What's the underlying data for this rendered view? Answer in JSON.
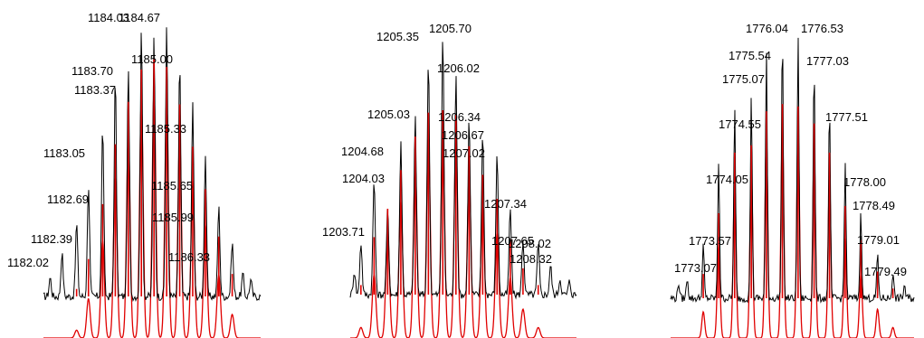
{
  "colors": {
    "experimental": "#000000",
    "simulated": "#e00000",
    "background": "#ffffff"
  },
  "chart_data": [
    {
      "type": "line",
      "x_unit": "m/z",
      "xlim": [
        1181.55,
        1187.05
      ],
      "peaks": [
        {
          "label": "1182.02",
          "x": 1182.02,
          "exp": 0.16,
          "sim": 0.0
        },
        {
          "label": "1182.39",
          "x": 1182.39,
          "exp": 0.27,
          "sim": 0.03
        },
        {
          "label": "1182.69",
          "x": 1182.69,
          "exp": 0.41,
          "sim": 0.15
        },
        {
          "label": "1183.05",
          "x": 1183.05,
          "exp": 0.63,
          "sim": 0.37
        },
        {
          "label": "1183.37",
          "x": 1183.37,
          "exp": 0.81,
          "sim": 0.61
        },
        {
          "label": "1183.70",
          "x": 1183.7,
          "exp": 0.84,
          "sim": 0.78
        },
        {
          "label": "1184.03",
          "x": 1184.03,
          "exp": 1.0,
          "sim": 0.91
        },
        {
          "label": "1184.67",
          "x": 1184.67,
          "exp": 1.0,
          "sim": 0.92
        },
        {
          "label": "1185.00",
          "x": 1185.0,
          "exp": 0.87,
          "sim": 0.77
        },
        {
          "label": "1185.33",
          "x": 1185.33,
          "exp": 0.71,
          "sim": 0.6
        },
        {
          "label": "1185.65",
          "x": 1185.65,
          "exp": 0.52,
          "sim": 0.43
        },
        {
          "label": "1185.99",
          "x": 1185.99,
          "exp": 0.33,
          "sim": 0.24
        },
        {
          "label": "1186.33",
          "x": 1186.33,
          "exp": 0.2,
          "sim": 0.09
        }
      ],
      "extra_peaks": [
        {
          "x": 1184.35,
          "exp": 0.96,
          "sim": 0.95
        },
        {
          "x": 1181.72,
          "exp": 0.07,
          "sim": 0.0
        },
        {
          "x": 1186.6,
          "exp": 0.08,
          "sim": 0.0
        },
        {
          "x": 1186.8,
          "exp": 0.06,
          "sim": 0.0
        }
      ]
    },
    {
      "type": "line",
      "x_unit": "m/z",
      "xlim": [
        1203.45,
        1208.95
      ],
      "peaks": [
        {
          "label": "1203.71",
          "x": 1203.71,
          "exp": 0.2,
          "sim": 0.04
        },
        {
          "label": "1204.03",
          "x": 1204.03,
          "exp": 0.44,
          "sim": 0.24
        },
        {
          "label": "1204.68",
          "x": 1204.68,
          "exp": 0.59,
          "sim": 0.52
        },
        {
          "label": "1205.03",
          "x": 1205.03,
          "exp": 0.68,
          "sim": 0.66
        },
        {
          "label": "1205.35",
          "x": 1205.35,
          "exp": 0.91,
          "sim": 0.76
        },
        {
          "label": "1205.70",
          "x": 1205.7,
          "exp": 1.0,
          "sim": 0.77
        },
        {
          "label": "1206.02",
          "x": 1206.02,
          "exp": 0.86,
          "sim": 0.75
        },
        {
          "label": "1206.34",
          "x": 1206.34,
          "exp": 0.68,
          "sim": 0.62
        },
        {
          "label": "1206.67",
          "x": 1206.67,
          "exp": 0.63,
          "sim": 0.5
        },
        {
          "label": "1207.02",
          "x": 1207.02,
          "exp": 0.55,
          "sim": 0.4
        },
        {
          "label": "1207.34",
          "x": 1207.34,
          "exp": 0.33,
          "sim": 0.23
        },
        {
          "label": "1207.65",
          "x": 1207.65,
          "exp": 0.21,
          "sim": 0.11
        },
        {
          "label": "1208.02",
          "x": 1208.02,
          "exp": 0.19,
          "sim": 0.04
        },
        {
          "label": "1208.32",
          "x": 1208.32,
          "exp": 0.11,
          "sim": 0.0
        }
      ],
      "extra_peaks": [
        {
          "x": 1204.36,
          "exp": 0.33,
          "sim": 0.4
        },
        {
          "x": 1203.55,
          "exp": 0.09,
          "sim": 0.0
        },
        {
          "x": 1208.55,
          "exp": 0.06,
          "sim": 0.0
        },
        {
          "x": 1208.78,
          "exp": 0.05,
          "sim": 0.0
        }
      ]
    },
    {
      "type": "line",
      "x_unit": "m/z",
      "xlim": [
        1772.55,
        1780.15
      ],
      "peaks": [
        {
          "label": "1773.07",
          "x": 1773.07,
          "exp": 0.08,
          "sim": 0.0
        },
        {
          "label": "1773.57",
          "x": 1773.57,
          "exp": 0.2,
          "sim": 0.1
        },
        {
          "label": "1774.05",
          "x": 1774.05,
          "exp": 0.52,
          "sim": 0.35
        },
        {
          "label": "1774.55",
          "x": 1774.55,
          "exp": 0.72,
          "sim": 0.6
        },
        {
          "label": "1775.07",
          "x": 1775.07,
          "exp": 0.78,
          "sim": 0.63
        },
        {
          "label": "1775.54",
          "x": 1775.54,
          "exp": 0.93,
          "sim": 0.77
        },
        {
          "label": "1776.04",
          "x": 1776.04,
          "exp": 1.0,
          "sim": 0.8
        },
        {
          "label": "1776.53",
          "x": 1776.53,
          "exp": 1.0,
          "sim": 0.79
        },
        {
          "label": "1777.03",
          "x": 1777.03,
          "exp": 0.9,
          "sim": 0.72
        },
        {
          "label": "1777.51",
          "x": 1777.51,
          "exp": 0.72,
          "sim": 0.6
        },
        {
          "label": "1778.00",
          "x": 1778.0,
          "exp": 0.5,
          "sim": 0.38
        },
        {
          "label": "1778.49",
          "x": 1778.49,
          "exp": 0.32,
          "sim": 0.24
        },
        {
          "label": "1779.01",
          "x": 1779.01,
          "exp": 0.16,
          "sim": 0.11
        },
        {
          "label": "1779.49",
          "x": 1779.49,
          "exp": 0.1,
          "sim": 0.04
        }
      ],
      "extra_peaks": [
        {
          "x": 1772.8,
          "exp": 0.06,
          "sim": 0.0
        },
        {
          "x": 1779.85,
          "exp": 0.05,
          "sim": 0.0
        }
      ]
    }
  ]
}
